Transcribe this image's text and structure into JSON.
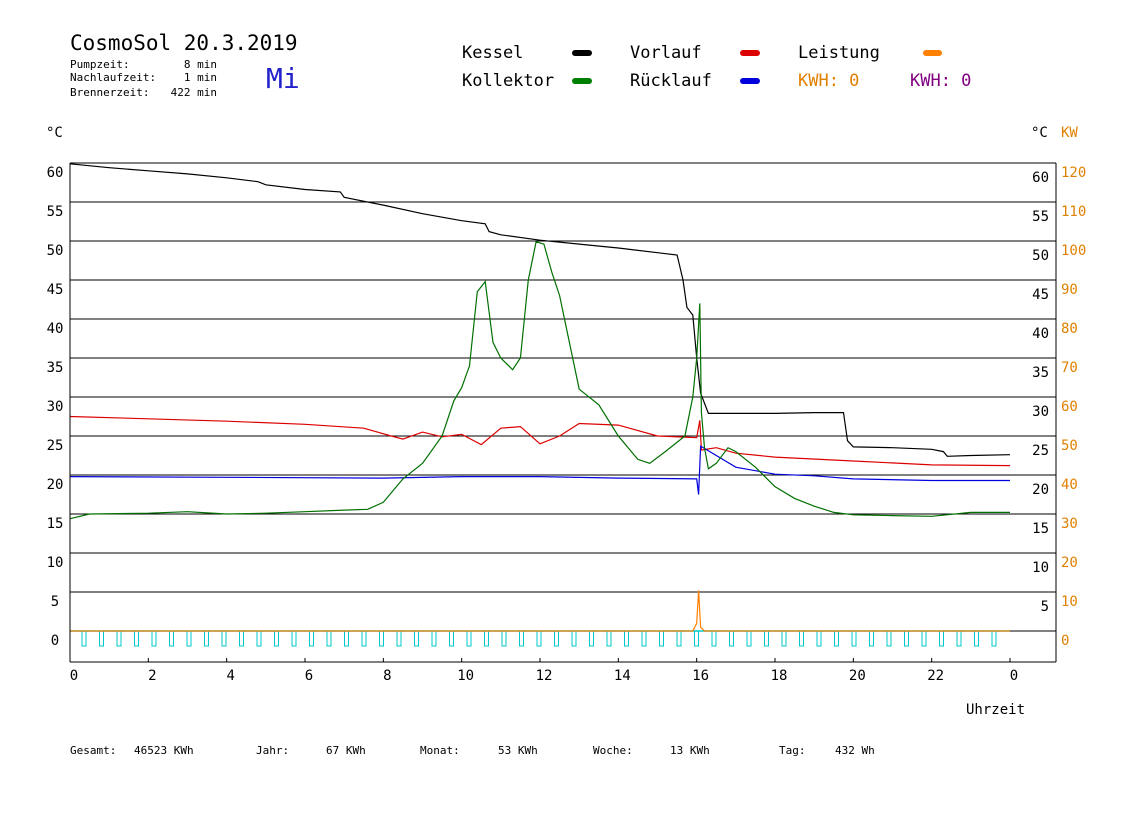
{
  "header": {
    "title": "CosmoSol 20.3.2019",
    "day": "Mi",
    "stats": [
      {
        "label": "Pumpzeit:",
        "value": "8 min"
      },
      {
        "label": "Nachlaufzeit:",
        "value": "1 min"
      },
      {
        "label": "Brennerzeit:",
        "value": "422 min"
      }
    ]
  },
  "legend": {
    "items": [
      {
        "label": "Kessel",
        "color": "#000000"
      },
      {
        "label": "Vorlauf",
        "color": "#dd0000"
      },
      {
        "label": "Leistung",
        "color": "#ff8000"
      },
      {
        "label": "Kollektor",
        "color": "#008000"
      },
      {
        "label": "Rücklauf",
        "color": "#0000dd"
      }
    ],
    "kwh_orange": "KWH: 0",
    "kwh_purple": "KWH: 0"
  },
  "footer": {
    "items": [
      {
        "label": "Gesamt:",
        "value": "46523 KWh"
      },
      {
        "label": "Jahr:",
        "value": "67 KWh"
      },
      {
        "label": "Monat:",
        "value": "53 KWh"
      },
      {
        "label": "Woche:",
        "value": "13 KWh"
      },
      {
        "label": "Tag:",
        "value": "432 Wh"
      }
    ]
  },
  "chart_data": {
    "type": "line",
    "xlabel": "Uhrzeit",
    "ylabel_left": "°C",
    "ylabel_right": "°C",
    "ylabel_right2": "KW",
    "xlim": [
      0,
      24
    ],
    "ylim": [
      0,
      60
    ],
    "x_ticks": [
      "0",
      "2",
      "4",
      "6",
      "8",
      "10",
      "12",
      "14",
      "16",
      "18",
      "20",
      "22",
      "0"
    ],
    "y_ticks_left": [
      "0",
      "5",
      "10",
      "15",
      "20",
      "25",
      "30",
      "35",
      "40",
      "45",
      "50",
      "55",
      "60"
    ],
    "y_ticks_right": [
      "5",
      "10",
      "15",
      "20",
      "25",
      "30",
      "35",
      "40",
      "45",
      "50",
      "55",
      "60"
    ],
    "y_ticks_kw": [
      "0",
      "10",
      "20",
      "30",
      "40",
      "50",
      "60",
      "70",
      "80",
      "90",
      "100",
      "110",
      "120"
    ],
    "grid": true,
    "series": [
      {
        "name": "Kessel",
        "color": "#000000",
        "points": [
          [
            0,
            59.9
          ],
          [
            1,
            59.4
          ],
          [
            2,
            59.0
          ],
          [
            3,
            58.6
          ],
          [
            4,
            58.1
          ],
          [
            4.8,
            57.6
          ],
          [
            5,
            57.2
          ],
          [
            6,
            56.6
          ],
          [
            6.9,
            56.3
          ],
          [
            7,
            55.6
          ],
          [
            8,
            54.6
          ],
          [
            9,
            53.5
          ],
          [
            10,
            52.6
          ],
          [
            10.6,
            52.2
          ],
          [
            10.7,
            51.2
          ],
          [
            11,
            50.8
          ],
          [
            12,
            50.1
          ],
          [
            13,
            49.6
          ],
          [
            14,
            49.1
          ],
          [
            15,
            48.5
          ],
          [
            15.5,
            48.2
          ],
          [
            15.65,
            45.0
          ],
          [
            15.75,
            41.5
          ],
          [
            15.9,
            40.5
          ],
          [
            16.0,
            35.0
          ],
          [
            16.1,
            30.5
          ],
          [
            16.3,
            27.9
          ],
          [
            17,
            27.9
          ],
          [
            18,
            27.9
          ],
          [
            19,
            28.0
          ],
          [
            19.75,
            28.0
          ],
          [
            19.85,
            24.4
          ],
          [
            20,
            23.6
          ],
          [
            21,
            23.5
          ],
          [
            22,
            23.3
          ],
          [
            22.3,
            23.0
          ],
          [
            22.4,
            22.4
          ],
          [
            23,
            22.5
          ],
          [
            24,
            22.6
          ]
        ]
      },
      {
        "name": "Vorlauf",
        "color": "#dd0000",
        "points": [
          [
            0,
            27.5
          ],
          [
            2,
            27.2
          ],
          [
            4,
            26.9
          ],
          [
            6,
            26.5
          ],
          [
            7.5,
            26.0
          ],
          [
            8.2,
            25.0
          ],
          [
            8.5,
            24.6
          ],
          [
            9,
            25.5
          ],
          [
            9.5,
            24.9
          ],
          [
            10,
            25.2
          ],
          [
            10.5,
            23.9
          ],
          [
            11,
            26.0
          ],
          [
            11.5,
            26.2
          ],
          [
            12,
            24.0
          ],
          [
            12.5,
            25.0
          ],
          [
            13,
            26.6
          ],
          [
            14,
            26.4
          ],
          [
            15,
            25.0
          ],
          [
            16.0,
            24.8
          ],
          [
            16.08,
            27.0
          ],
          [
            16.12,
            23.2
          ],
          [
            16.5,
            23.5
          ],
          [
            17,
            22.8
          ],
          [
            18,
            22.3
          ],
          [
            20,
            21.8
          ],
          [
            22,
            21.3
          ],
          [
            24,
            21.2
          ]
        ]
      },
      {
        "name": "Rücklauf",
        "color": "#0000dd",
        "points": [
          [
            0,
            19.8
          ],
          [
            4,
            19.7
          ],
          [
            8,
            19.6
          ],
          [
            10,
            19.8
          ],
          [
            12,
            19.8
          ],
          [
            14,
            19.6
          ],
          [
            16.0,
            19.5
          ],
          [
            16.05,
            17.5
          ],
          [
            16.1,
            23.7
          ],
          [
            16.5,
            22.5
          ],
          [
            17,
            21.0
          ],
          [
            18,
            20.1
          ],
          [
            19,
            19.9
          ],
          [
            20,
            19.5
          ],
          [
            22,
            19.3
          ],
          [
            24,
            19.3
          ]
        ]
      },
      {
        "name": "Kollektor",
        "color": "#007000",
        "points": [
          [
            0,
            14.4
          ],
          [
            0.5,
            15.0
          ],
          [
            2,
            15.1
          ],
          [
            3,
            15.3
          ],
          [
            4,
            15.0
          ],
          [
            5,
            15.1
          ],
          [
            6,
            15.3
          ],
          [
            7,
            15.5
          ],
          [
            7.6,
            15.6
          ],
          [
            8,
            16.5
          ],
          [
            8.5,
            19.5
          ],
          [
            9,
            21.5
          ],
          [
            9.5,
            25.0
          ],
          [
            9.8,
            29.5
          ],
          [
            10.0,
            31.2
          ],
          [
            10.2,
            34.0
          ],
          [
            10.4,
            43.5
          ],
          [
            10.6,
            44.8
          ],
          [
            10.8,
            37.0
          ],
          [
            11.0,
            35.0
          ],
          [
            11.3,
            33.5
          ],
          [
            11.5,
            35.0
          ],
          [
            11.7,
            45.0
          ],
          [
            11.9,
            49.9
          ],
          [
            12.1,
            49.6
          ],
          [
            12.3,
            46.0
          ],
          [
            12.5,
            43.0
          ],
          [
            13.0,
            31.0
          ],
          [
            13.5,
            29.0
          ],
          [
            14.0,
            25.0
          ],
          [
            14.5,
            22.0
          ],
          [
            14.8,
            21.5
          ],
          [
            15.2,
            23.0
          ],
          [
            15.7,
            25.0
          ],
          [
            15.9,
            30.0
          ],
          [
            16.0,
            35.0
          ],
          [
            16.08,
            42.0
          ],
          [
            16.12,
            28.0
          ],
          [
            16.2,
            23.5
          ],
          [
            16.3,
            20.8
          ],
          [
            16.5,
            21.5
          ],
          [
            16.8,
            23.5
          ],
          [
            17.0,
            23.0
          ],
          [
            17.5,
            21.0
          ],
          [
            18.0,
            18.5
          ],
          [
            18.5,
            17.0
          ],
          [
            19.0,
            16.0
          ],
          [
            19.5,
            15.2
          ],
          [
            20,
            14.9
          ],
          [
            21,
            14.8
          ],
          [
            22,
            14.7
          ],
          [
            23,
            15.2
          ],
          [
            24,
            15.2
          ]
        ]
      },
      {
        "name": "Leistung",
        "color": "#ff8000",
        "points": [
          [
            0,
            0
          ],
          [
            15.9,
            0
          ],
          [
            16.0,
            1.0
          ],
          [
            16.05,
            5.2
          ],
          [
            16.1,
            0.5
          ],
          [
            16.2,
            0
          ],
          [
            24,
            0
          ]
        ]
      },
      {
        "name": "Pumpe",
        "color": "#00c8c8",
        "points": []
      }
    ]
  }
}
